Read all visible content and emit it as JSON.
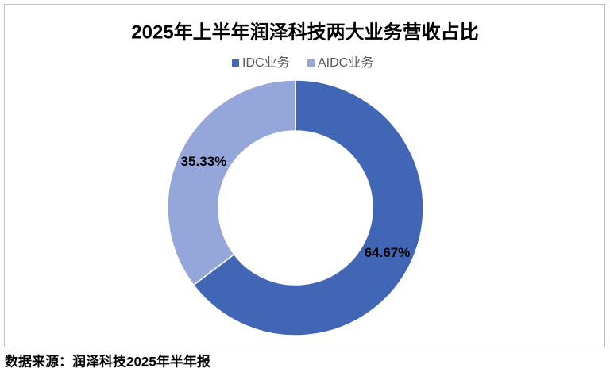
{
  "chart_data": {
    "type": "donut",
    "title": "2025年上半年润泽科技两大业务营收占比",
    "categories": [
      "IDC业务",
      "AIDC业务"
    ],
    "values": [
      64.67,
      35.33
    ],
    "value_labels": [
      "64.67%",
      "35.33%"
    ],
    "colors": [
      "#4166b5",
      "#94a6da"
    ],
    "legend": "top",
    "source": "数据来源：润泽科技2025年半年报"
  }
}
